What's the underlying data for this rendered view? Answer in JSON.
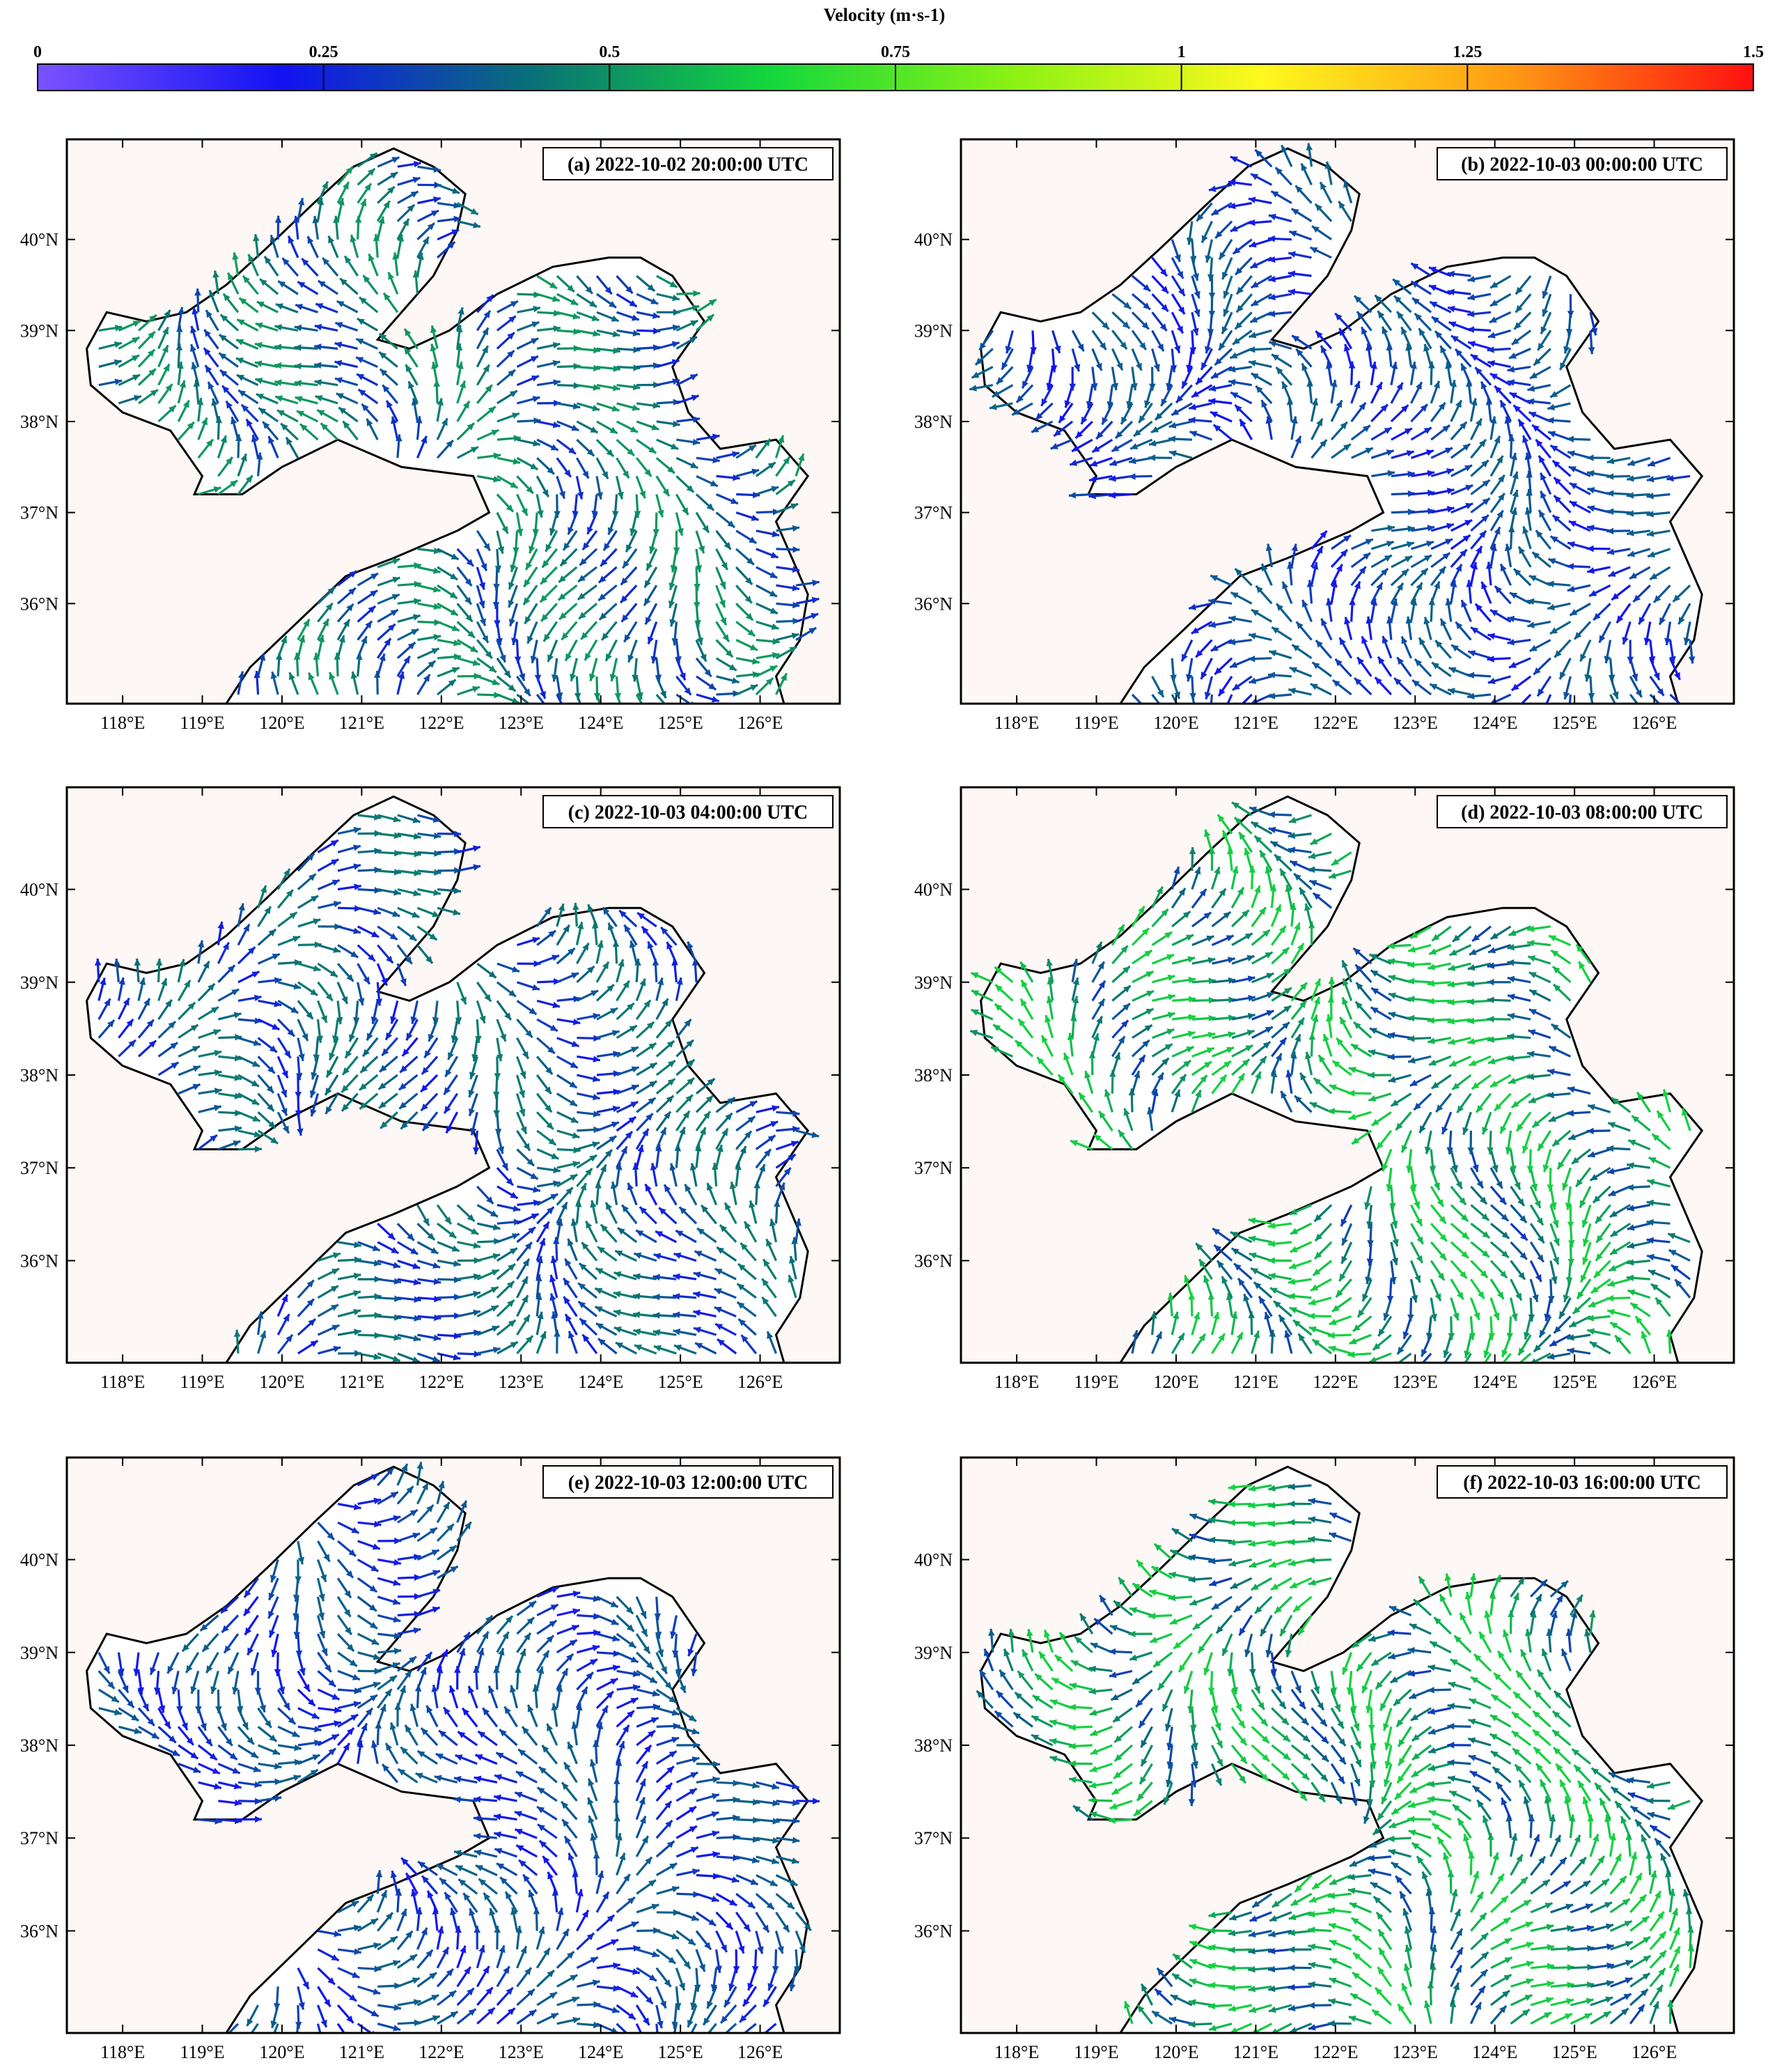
{
  "colorbar": {
    "title": "Velocity (m·s-1)",
    "ticks": [
      0,
      0.25,
      0.5,
      0.75,
      1,
      1.25,
      1.5
    ],
    "tick_labels": [
      "0",
      "0.25",
      "0.5",
      "0.75",
      "1",
      "1.25",
      "1.5"
    ],
    "colors": [
      "#7b52ff",
      "#1212f2",
      "#0a6e78",
      "#14d83c",
      "#8ef214",
      "#fff81e",
      "#ff9b14",
      "#ff1010"
    ]
  },
  "chart_data": {
    "type": "vector-field-map",
    "x_ticks": [
      118,
      119,
      120,
      121,
      122,
      123,
      124,
      125,
      126
    ],
    "x_tick_labels": [
      "118°E",
      "119°E",
      "120°E",
      "121°E",
      "122°E",
      "123°E",
      "124°E",
      "125°E",
      "126°E"
    ],
    "y_ticks": [
      36,
      37,
      38,
      39,
      40
    ],
    "y_tick_labels": [
      "36°N",
      "37°N",
      "38°N",
      "39°N",
      "40°N"
    ],
    "xlim": [
      117.3,
      127.0
    ],
    "ylim": [
      34.9,
      41.1
    ],
    "panels": [
      {
        "label": "(a) 2022-10-02 20:00:00 UTC",
        "mean_speed": 0.45
      },
      {
        "label": "(b) 2022-10-03 00:00:00 UTC",
        "mean_speed": 0.35
      },
      {
        "label": "(c) 2022-10-03 04:00:00 UTC",
        "mean_speed": 0.4
      },
      {
        "label": "(d) 2022-10-03 08:00:00 UTC",
        "mean_speed": 0.55
      },
      {
        "label": "(e) 2022-10-03 12:00:00 UTC",
        "mean_speed": 0.35
      },
      {
        "label": "(f) 2022-10-03 16:00:00 UTC",
        "mean_speed": 0.55
      }
    ]
  }
}
